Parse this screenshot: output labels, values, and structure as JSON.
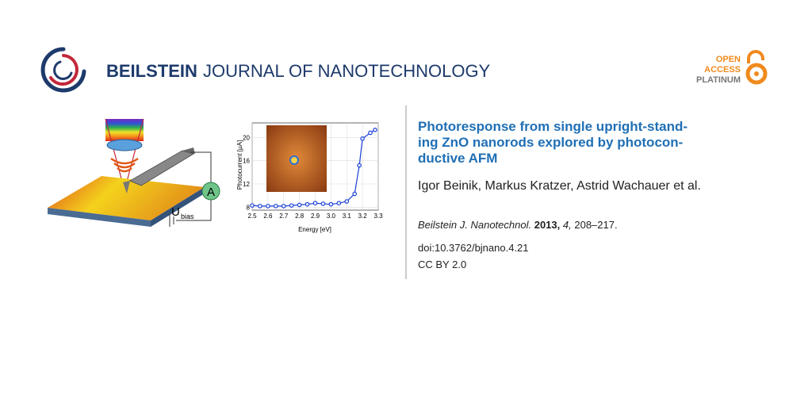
{
  "header": {
    "brand": "BEILSTEIN",
    "journal": "JOURNAL OF NANOTECHNOLOGY",
    "badge": [
      "OPEN",
      "ACCESS",
      "PLATINUM"
    ]
  },
  "figure": {
    "meter": "A",
    "bias": "U",
    "bias_sub": "bias",
    "chart": {
      "type": "scatter",
      "x_label": "Energy [eV]",
      "y_label": "Photocurrent [µA]",
      "color": "#1a3fd6",
      "x": [
        2.5,
        2.55,
        2.6,
        2.65,
        2.7,
        2.75,
        2.8,
        2.85,
        2.9,
        2.95,
        3.0,
        3.05,
        3.1,
        3.15,
        3.18,
        3.2,
        3.25,
        3.28
      ],
      "y": [
        8.3,
        8.2,
        8.2,
        8.2,
        8.2,
        8.3,
        8.4,
        8.5,
        8.7,
        8.6,
        8.5,
        8.7,
        9.0,
        10.3,
        15.2,
        19.8,
        20.8,
        21.3
      ],
      "xlim": [
        2.5,
        3.3
      ],
      "ylim": [
        7.5,
        22.5
      ],
      "xticks": [
        2.5,
        2.6,
        2.7,
        2.8,
        2.9,
        {
          "value": 3,
          "label": "3.0"
        },
        3.1,
        3.2,
        3.3
      ],
      "yticks": [
        8,
        12,
        16,
        20
      ],
      "grid": true
    }
  },
  "article": {
    "title_lines": [
      "Photoresponse from single upright-stand-",
      "ing ZnO nanorods explored by photocon-",
      "ductive AFM"
    ],
    "authors": "Igor Beinik, Markus Kratzer, Astrid Wachauer et al.",
    "citation": {
      "journal": "Beilstein J. Nanotechnol.",
      "year": "2013,",
      "volume": "4,",
      "pages": "208–217."
    },
    "doi": "doi:10.3762/bjnano.4.21",
    "license": "CC BY 2.0"
  }
}
